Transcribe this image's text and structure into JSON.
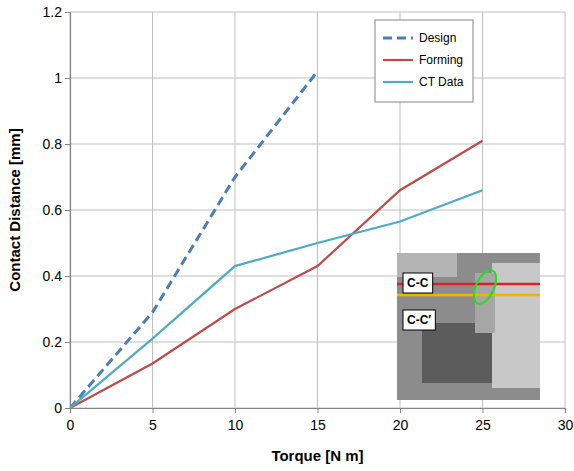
{
  "chart_data": {
    "type": "line",
    "x_label": "Torque [N m]",
    "y_label": "Contact Distance [mm]",
    "x": [
      0,
      5,
      10,
      15,
      20,
      25
    ],
    "series": [
      {
        "name": "Design",
        "color": "#4a7ebb",
        "line_style": "dashed",
        "marker": "none",
        "values": [
          0,
          0.29,
          0.7,
          1.02,
          null,
          null
        ]
      },
      {
        "name": "Forming",
        "color": "#be4b48",
        "line_style": "solid",
        "marker": "none",
        "values": [
          0,
          0.135,
          0.3,
          0.43,
          0.66,
          0.81
        ]
      },
      {
        "name": "CT Data",
        "color": "#4bacc6",
        "line_style": "solid",
        "marker": "none",
        "values": [
          0,
          0.21,
          0.43,
          0.5,
          0.565,
          0.66
        ]
      }
    ],
    "xlim": [
      0,
      30
    ],
    "xticks": [
      0,
      5,
      10,
      15,
      20,
      25,
      30
    ],
    "ylim": [
      0,
      1.2
    ],
    "yticks": [
      0,
      0.2,
      0.4,
      0.6,
      0.8,
      1,
      1.2
    ],
    "grid": true,
    "legend": "upper right",
    "annotations": [
      "C-C",
      "C-C′"
    ]
  }
}
